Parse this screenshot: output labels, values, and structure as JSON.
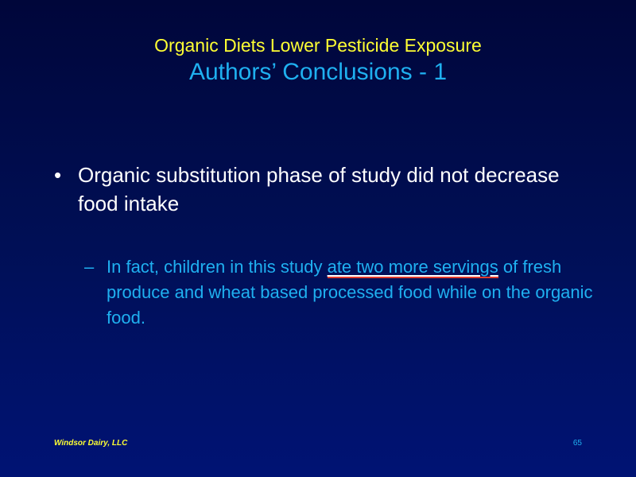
{
  "slide": {
    "title_line1": "Organic Diets Lower Pesticide Exposure",
    "title_line2": "Authors’ Conclusions - 1",
    "bullet": {
      "mark": "•",
      "text": "Organic substitution phase of study did not decrease food intake"
    },
    "sub_bullet": {
      "mark": "–",
      "text_before": "In fact, children in this study ",
      "text_highlight": "ate two more servings",
      "text_after": " of fresh produce and wheat based processed food while on the organic food."
    },
    "footer": {
      "company": "Windsor Dairy, LLC",
      "page_number": "65"
    },
    "colors": {
      "title_line1": "#ffff33",
      "title_line2": "#1fb0f0",
      "body_text": "#ffffff",
      "sub_text": "#1fb0f0",
      "highlight_underline": "#e03a2c",
      "background_top": "#00063a",
      "background_bottom": "#001374"
    }
  }
}
